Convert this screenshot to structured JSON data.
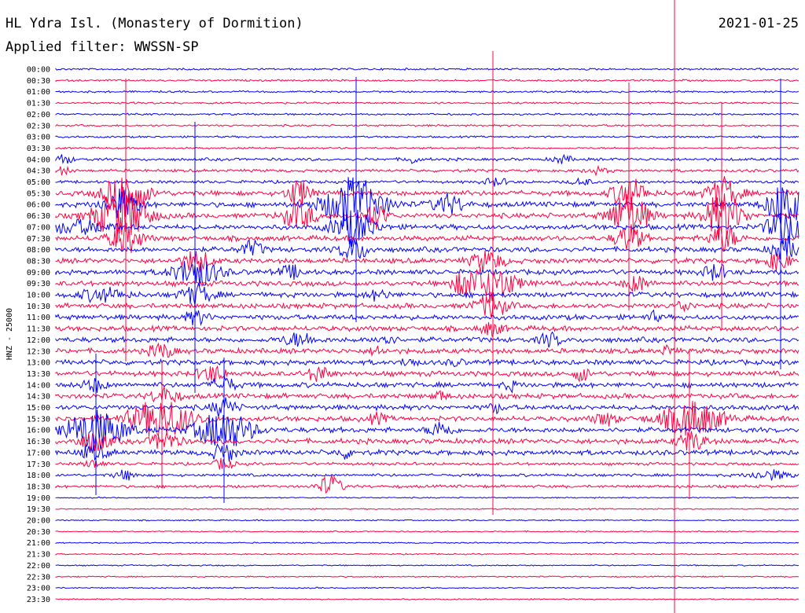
{
  "header": {
    "title": "HL Ydra Isl. (Monastery of Dormition)",
    "date": "2021-01-25",
    "filter": "Applied filter: WWSSN-SP"
  },
  "chart_data": {
    "type": "line",
    "ylabel": "HNZ - 25000",
    "colors": [
      "#0000ff",
      "#ff0040"
    ],
    "marker_color": "#ff0040",
    "traces": [
      {
        "label": "00:00",
        "color": "#0000ff"
      },
      {
        "label": "00:30",
        "color": "#ff0040"
      },
      {
        "label": "01:00",
        "color": "#0000ff"
      },
      {
        "label": "01:30",
        "color": "#ff0040"
      },
      {
        "label": "02:00",
        "color": "#0000ff"
      },
      {
        "label": "02:30",
        "color": "#ff0040"
      },
      {
        "label": "03:00",
        "color": "#0000ff"
      },
      {
        "label": "03:30",
        "color": "#ff0040"
      },
      {
        "label": "04:00",
        "color": "#0000ff"
      },
      {
        "label": "04:30",
        "color": "#ff0040"
      },
      {
        "label": "05:00",
        "color": "#0000ff"
      },
      {
        "label": "05:30",
        "color": "#ff0040"
      },
      {
        "label": "06:00",
        "color": "#0000ff"
      },
      {
        "label": "06:30",
        "color": "#ff0040"
      },
      {
        "label": "07:00",
        "color": "#0000ff"
      },
      {
        "label": "07:30",
        "color": "#ff0040"
      },
      {
        "label": "08:00",
        "color": "#0000ff"
      },
      {
        "label": "08:30",
        "color": "#ff0040"
      },
      {
        "label": "09:00",
        "color": "#0000ff"
      },
      {
        "label": "09:30",
        "color": "#ff0040"
      },
      {
        "label": "10:00",
        "color": "#0000ff"
      },
      {
        "label": "10:30",
        "color": "#ff0040"
      },
      {
        "label": "11:00",
        "color": "#0000ff"
      },
      {
        "label": "11:30",
        "color": "#ff0040"
      },
      {
        "label": "12:00",
        "color": "#0000ff"
      },
      {
        "label": "12:30",
        "color": "#ff0040"
      },
      {
        "label": "13:00",
        "color": "#0000ff"
      },
      {
        "label": "13:30",
        "color": "#ff0040"
      },
      {
        "label": "14:00",
        "color": "#0000ff"
      },
      {
        "label": "14:30",
        "color": "#ff0040"
      },
      {
        "label": "15:00",
        "color": "#0000ff"
      },
      {
        "label": "15:30",
        "color": "#ff0040"
      },
      {
        "label": "16:00",
        "color": "#0000ff"
      },
      {
        "label": "16:30",
        "color": "#ff0040"
      },
      {
        "label": "17:00",
        "color": "#0000ff"
      },
      {
        "label": "17:30",
        "color": "#ff0040"
      },
      {
        "label": "18:00",
        "color": "#0000ff"
      },
      {
        "label": "18:30",
        "color": "#ff0040"
      },
      {
        "label": "19:00",
        "color": "#0000ff"
      },
      {
        "label": "19:30",
        "color": "#ff0040"
      },
      {
        "label": "20:00",
        "color": "#0000ff"
      },
      {
        "label": "20:30",
        "color": "#ff0040"
      },
      {
        "label": "21:00",
        "color": "#0000ff"
      },
      {
        "label": "21:30",
        "color": "#ff0040"
      },
      {
        "label": "22:00",
        "color": "#0000ff"
      },
      {
        "label": "22:30",
        "color": "#ff0040"
      },
      {
        "label": "23:00",
        "color": "#0000ff"
      },
      {
        "label": "23:30",
        "color": "#ff0040"
      }
    ]
  }
}
